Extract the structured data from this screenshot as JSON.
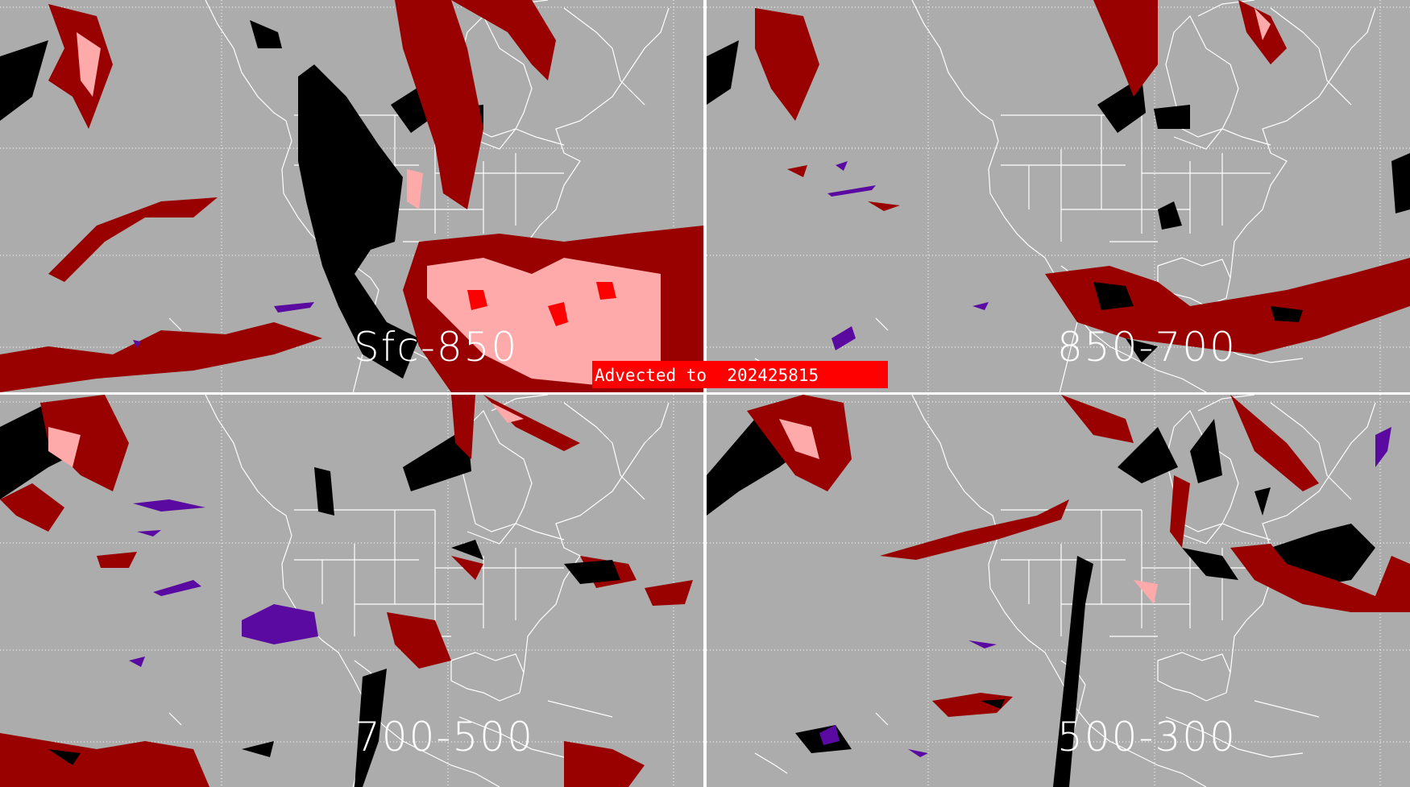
{
  "panels": [
    {
      "label": "Sfc-850"
    },
    {
      "label": "850-700"
    },
    {
      "label": "700-500"
    },
    {
      "label": "500-300"
    }
  ],
  "banner": {
    "text": "Advected to  202425815"
  },
  "colors": {
    "background": "#acacac",
    "dark_red": "#990000",
    "pink": "#ffaaaa",
    "red": "#ff0000",
    "purple": "#5a0aa0",
    "black": "#000000",
    "map_lines": "#ffffff"
  }
}
